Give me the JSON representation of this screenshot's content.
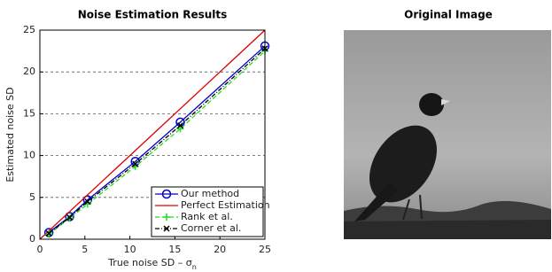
{
  "chart_data": {
    "type": "line",
    "title": "Noise Estimation Results",
    "xlabel": {
      "text": "True noise SD – σ",
      "subscript": "n"
    },
    "ylabel": "Estimated noise SD",
    "xlim": [
      0,
      25
    ],
    "ylim": [
      0,
      25
    ],
    "xticks": [
      0,
      5,
      10,
      15,
      20,
      25
    ],
    "yticks": [
      0,
      5,
      10,
      15,
      20,
      25
    ],
    "grid": true,
    "legend": "lower right",
    "series": [
      {
        "name": "Our method",
        "color": "#0000cc",
        "style": "solid",
        "marker": "o",
        "x": [
          1,
          3.3,
          5.3,
          10.6,
          15.6,
          25
        ],
        "values": [
          0.8,
          2.7,
          4.7,
          9.3,
          14.0,
          23.1
        ]
      },
      {
        "name": "Perfect Estimation",
        "color": "#e00000",
        "style": "solid",
        "marker": null,
        "x": [
          0,
          25
        ],
        "values": [
          0,
          25
        ]
      },
      {
        "name": "Rank et al.",
        "color": "#22dd22",
        "style": "dashed",
        "marker": "+",
        "x": [
          1,
          3.3,
          5.3,
          10.6,
          15.6,
          25
        ],
        "values": [
          0.6,
          2.5,
          4.2,
          8.7,
          13.2,
          22.5
        ]
      },
      {
        "name": "Corner et al.",
        "color": "#000000",
        "style": "dashdot",
        "marker": "x",
        "x": [
          1,
          3.3,
          5.3,
          10.6,
          15.6,
          25
        ],
        "values": [
          0.7,
          2.6,
          4.5,
          9.0,
          13.6,
          22.8
        ]
      }
    ]
  },
  "image": {
    "title": "Original Image"
  }
}
